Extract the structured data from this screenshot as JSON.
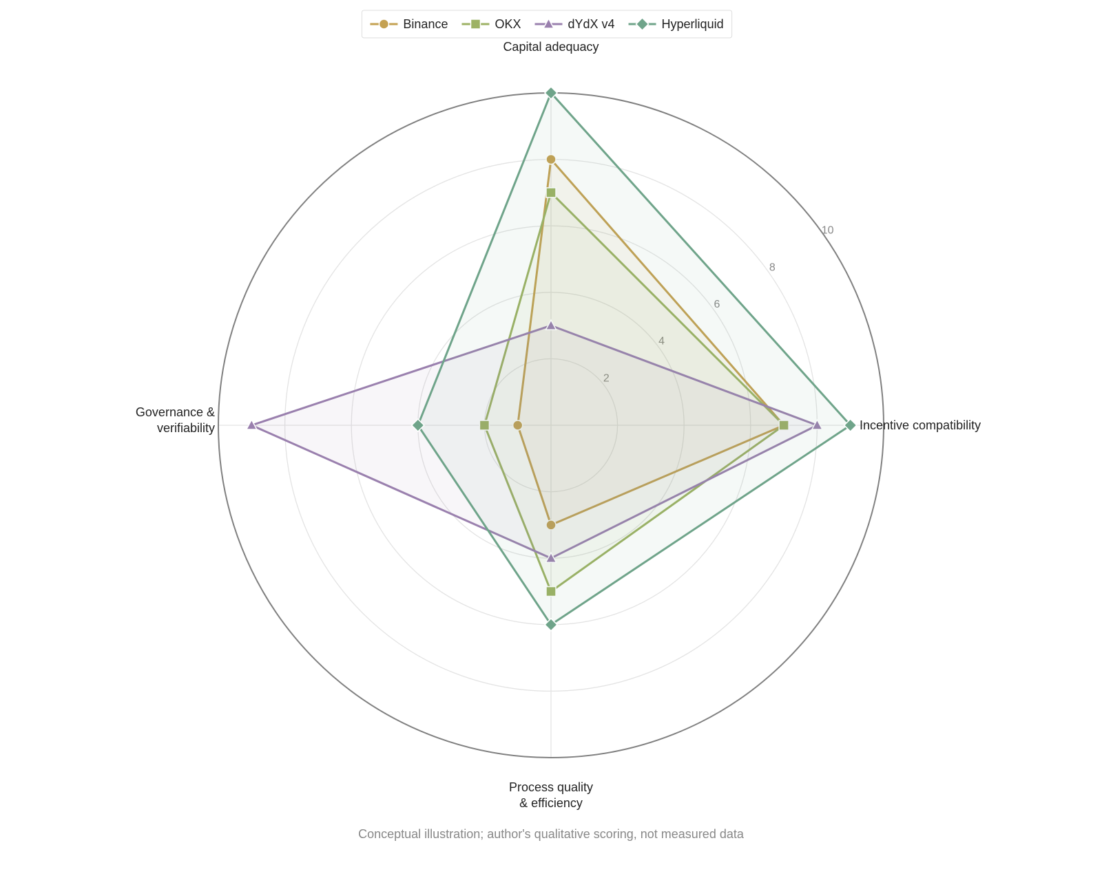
{
  "chart_data": {
    "type": "radar",
    "axes": [
      "Capital adequacy",
      "Incentive compatibility",
      "Process quality\n& efficiency",
      "Governance &\nverifiability"
    ],
    "rlim": [
      0,
      10
    ],
    "radial_ticks": [
      2,
      4,
      6,
      8,
      10
    ],
    "grid": true,
    "legend_position": "top-center",
    "series": [
      {
        "name": "Binance",
        "values": [
          8,
          7,
          3,
          1
        ],
        "color": "#C4A152",
        "marker": "circle"
      },
      {
        "name": "OKX",
        "values": [
          7,
          7,
          5,
          2
        ],
        "color": "#9DB264",
        "marker": "square"
      },
      {
        "name": "dYdX v4",
        "values": [
          3,
          8,
          4,
          9
        ],
        "color": "#9A80AE",
        "marker": "triangle"
      },
      {
        "name": "Hyperliquid",
        "values": [
          10,
          9,
          6,
          4
        ],
        "color": "#6FA48A",
        "marker": "diamond"
      }
    ],
    "caption": "Conceptual illustration; author's qualitative scoring, not measured data"
  }
}
